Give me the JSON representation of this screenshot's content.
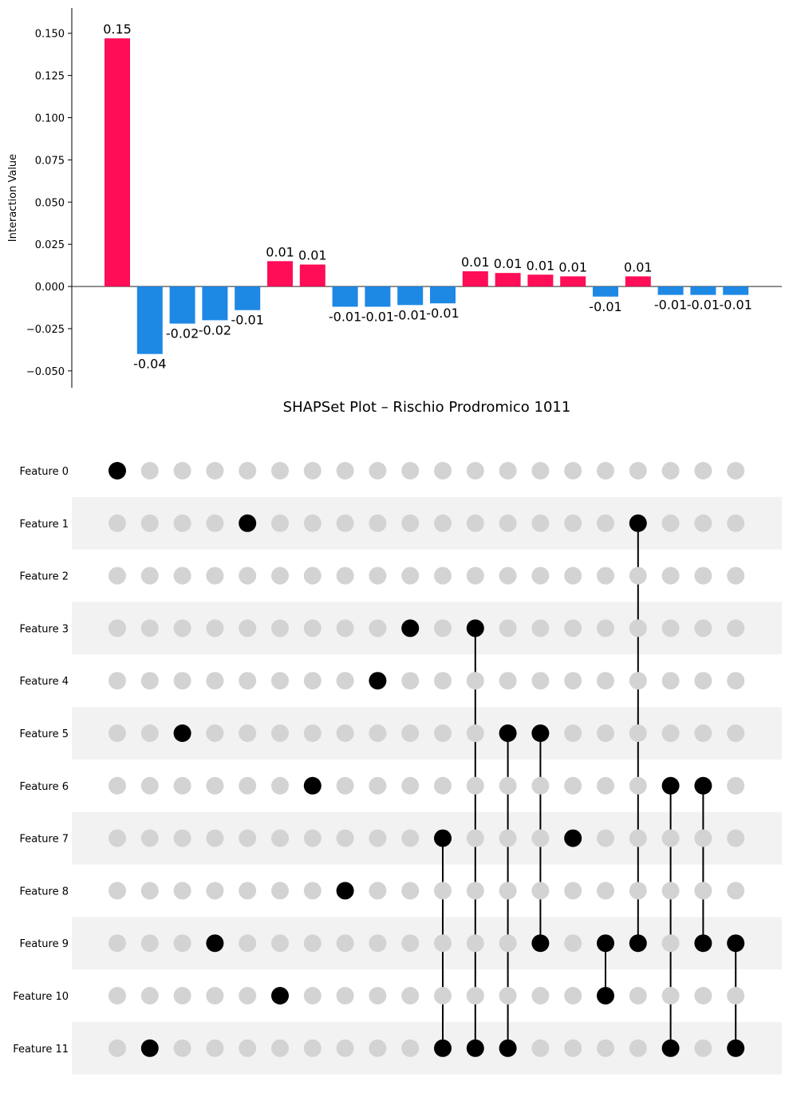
{
  "chart_data": {
    "type": "bar",
    "title": "SHAPSet Plot – Rischio Prodromico 1011",
    "ylabel": "Interaction Value",
    "ylim": [
      -0.06,
      0.165
    ],
    "yticks": [
      -0.05,
      -0.025,
      0.0,
      0.025,
      0.05,
      0.075,
      0.1,
      0.125,
      0.15
    ],
    "ytick_labels": [
      "−0.050",
      "−0.025",
      "0.000",
      "0.025",
      "0.050",
      "0.075",
      "0.100",
      "0.125",
      "0.150"
    ],
    "values": [
      0.147,
      -0.04,
      -0.022,
      -0.02,
      -0.014,
      0.015,
      0.013,
      -0.012,
      -0.012,
      -0.011,
      -0.01,
      0.009,
      0.008,
      0.007,
      0.006,
      -0.006,
      0.006,
      -0.005,
      -0.005,
      -0.005
    ],
    "value_labels": [
      "0.15",
      "-0.04",
      "-0.02",
      "-0.02",
      "-0.01",
      "0.01",
      "0.01",
      "-0.01",
      "-0.01",
      "-0.01",
      "-0.01",
      "0.01",
      "0.01",
      "0.01",
      "0.01",
      "-0.01",
      "0.01",
      "-0.01",
      "-0.01",
      "-0.01"
    ],
    "colors": {
      "positive": "#ff0d57",
      "negative": "#1e88e5"
    },
    "features": [
      "Feature 0",
      "Feature 1",
      "Feature 2",
      "Feature 3",
      "Feature 4",
      "Feature 5",
      "Feature 6",
      "Feature 7",
      "Feature 8",
      "Feature 9",
      "Feature 10",
      "Feature 11"
    ],
    "sets": [
      [
        0
      ],
      [
        11
      ],
      [
        5
      ],
      [
        9
      ],
      [
        1
      ],
      [
        10
      ],
      [
        6
      ],
      [
        8
      ],
      [
        4
      ],
      [
        3
      ],
      [
        7,
        11
      ],
      [
        3,
        11
      ],
      [
        5,
        11
      ],
      [
        5,
        9
      ],
      [
        7
      ],
      [
        9,
        10
      ],
      [
        1,
        9
      ],
      [
        6,
        11
      ],
      [
        6,
        9
      ],
      [
        9,
        11
      ]
    ],
    "matrix_colors": {
      "active": "#000000",
      "inactive": "#d3d3d3",
      "row_band": "#f2f2f2"
    }
  }
}
